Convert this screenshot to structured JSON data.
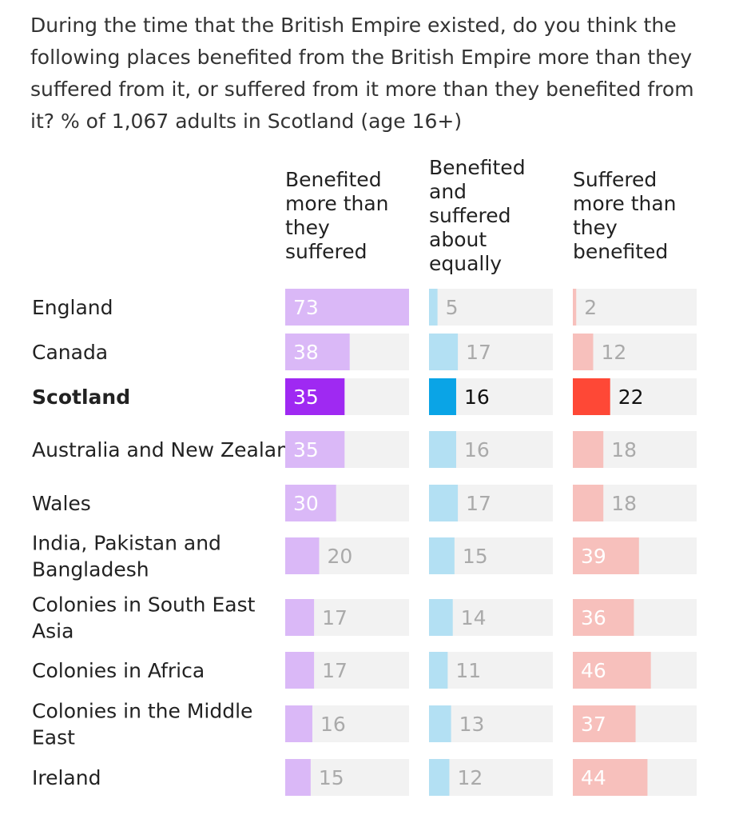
{
  "title": "During the time that the British Empire existed, do you think the following places benefited from the British Empire more than they suffered from it, or suffered from it more than they benefited from it? % of 1,067 adults in Scotland (age 16+)",
  "chart_data": {
    "type": "bar",
    "title": "During the time that the British Empire existed, do you think the following places benefited from the British Empire more than they suffered from it, or suffered from it more than they benefited from it? % of 1,067 adults in Scotland (age 16+)",
    "categories": [
      "England",
      "Canada",
      "Scotland",
      "Australia and New Zealand",
      "Wales",
      "India, Pakistan and Bangladesh",
      "Colonies in South East Asia",
      "Colonies in Africa",
      "Colonies in the Middle East",
      "Ireland"
    ],
    "highlighted_category": "Scotland",
    "series": [
      {
        "name": "Benefited more than they suffered",
        "values": [
          73,
          38,
          35,
          35,
          30,
          20,
          17,
          17,
          16,
          15
        ],
        "color": "#dab8f7",
        "highlight_color": "#9f29f2"
      },
      {
        "name": "Benefited and suffered about equally",
        "values": [
          5,
          17,
          16,
          16,
          17,
          15,
          14,
          11,
          13,
          12
        ],
        "color": "#b3e0f3",
        "highlight_color": "#0aa4e6"
      },
      {
        "name": "Suffered more than they benefited",
        "values": [
          2,
          12,
          22,
          18,
          18,
          39,
          36,
          46,
          37,
          44
        ],
        "color": "#f7c0bc",
        "highlight_color": "#fe4836"
      }
    ],
    "xlim": [
      0,
      73
    ],
    "track_color": "#f2f2f2"
  }
}
